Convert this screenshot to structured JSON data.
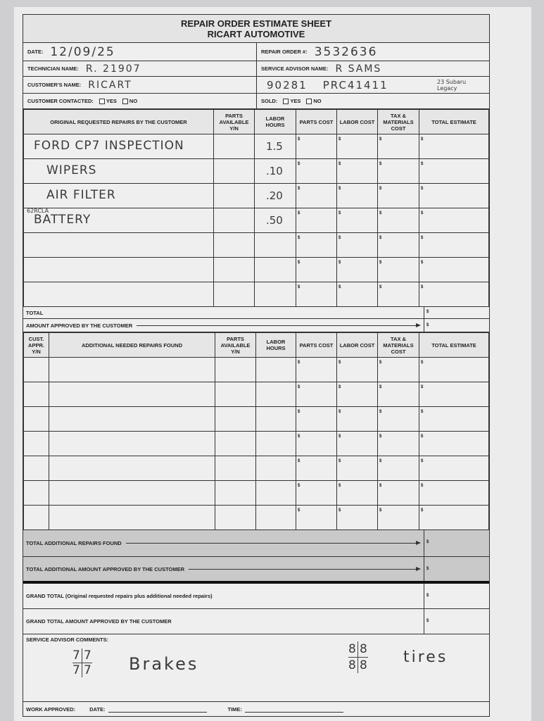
{
  "header": {
    "title": "REPAIR ORDER ESTIMATE SHEET",
    "company": "RICART AUTOMOTIVE"
  },
  "fields": {
    "date_label": "DATE:",
    "date_value": "12/09/25",
    "repair_order_label": "REPAIR ORDER #:",
    "repair_order_value": "3532636",
    "technician_label": "TECHNICIAN NAME:",
    "technician_value": "R. 21907",
    "advisor_label": "SERVICE ADVISOR NAME:",
    "advisor_value": "R SAMS",
    "customer_label": "CUSTOMER'S NAME:",
    "customer_value": "RICART",
    "extra_1": "90281",
    "extra_2": "PRC41411",
    "vehicle": "23 Subaru Legacy",
    "contacted_label": "CUSTOMER CONTACTED:",
    "sold_label": "SOLD:",
    "yes": "YES",
    "no": "NO"
  },
  "original_table": {
    "columns": [
      "ORIGINAL REQUESTED REPAIRS BY THE CUSTOMER",
      "PARTS AVAILABLE Y/N",
      "LABOR HOURS",
      "PARTS COST",
      "LABOR COST",
      "TAX & MATERIALS COST",
      "TOTAL ESTIMATE"
    ],
    "rows": [
      {
        "repair": "Ford CP7 inspection",
        "note": "",
        "hours": "1.5"
      },
      {
        "repair": "wipers",
        "note": "",
        "hours": ".10"
      },
      {
        "repair": "Air filter",
        "note": "",
        "hours": ".20"
      },
      {
        "repair": "Battery",
        "note": "62RCLA",
        "hours": ".50"
      },
      {
        "repair": "",
        "note": "",
        "hours": ""
      },
      {
        "repair": "",
        "note": "",
        "hours": ""
      },
      {
        "repair": "",
        "note": "",
        "hours": ""
      }
    ],
    "currency": "$",
    "total_label": "TOTAL",
    "approved_label": "AMOUNT APPROVED BY THE CUSTOMER"
  },
  "additional_table": {
    "columns": [
      "CUST. APPR. Y/N",
      "ADDITIONAL NEEDED REPAIRS FOUND",
      "PARTS AVAILABLE Y/N",
      "LABOR HOURS",
      "PARTS COST",
      "LABOR COST",
      "TAX & MATERIALS COST",
      "TOTAL ESTIMATE"
    ],
    "row_count": 7
  },
  "totals": {
    "additional_found": "TOTAL ADDITIONAL REPAIRS FOUND",
    "additional_approved": "TOTAL ADDITIONAL AMOUNT APPROVED BY THE CUSTOMER",
    "grand_total": "GRAND TOTAL (Original requested repairs plus additional needed repairs)",
    "grand_approved": "GRAND TOTAL AMOUNT APPROVED BY THE CUSTOMER"
  },
  "comments": {
    "label": "SERVICE ADVISOR COMMENTS:",
    "brakes_values": [
      "7",
      "7",
      "7",
      "7"
    ],
    "brakes": "Brakes",
    "tires_values": [
      "8",
      "8",
      "8",
      "8"
    ],
    "tires": "tires"
  },
  "footer": {
    "work_approved": "WORK APPROVED:",
    "date": "DATE:",
    "time": "TIME:"
  }
}
